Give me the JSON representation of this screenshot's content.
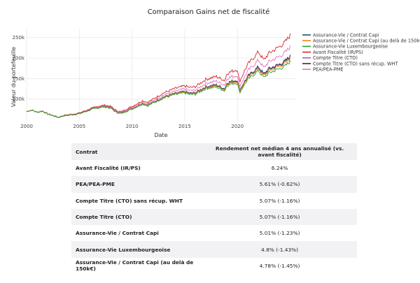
{
  "chart_data": {
    "type": "line",
    "title": "Comparaison Gains net de fiscalité",
    "xlabel": "Date",
    "ylabel": "Valeur du portefeuille",
    "xlim": [
      2000,
      2025.5
    ],
    "ylim": [
      45000,
      270000
    ],
    "xticks": [
      2000,
      2005,
      2010,
      2015,
      2020
    ],
    "xtick_labels": [
      "2000",
      "2005",
      "2010",
      "2015",
      "2020"
    ],
    "yticks": [
      100000,
      150000,
      200000,
      250000
    ],
    "ytick_labels": [
      "100k",
      "150k",
      "200k",
      "250k"
    ],
    "grid": true,
    "legend_position": "right",
    "base_path": {
      "x": [
        2000,
        2000.5,
        2001,
        2001.5,
        2002,
        2002.5,
        2003,
        2003.5,
        2004,
        2005,
        2006,
        2006.5,
        2007,
        2007.5,
        2008,
        2008.5,
        2009,
        2009.5,
        2010,
        2011,
        2011.5,
        2012,
        2013,
        2014,
        2015,
        2015.5,
        2016,
        2017,
        2018,
        2018.8,
        2019,
        2019.5,
        2020,
        2020.2,
        2020.6,
        2021,
        2021.5,
        2022,
        2022.5,
        2023,
        2024,
        2024.5,
        2025
      ],
      "y": [
        70000,
        73000,
        68000,
        71000,
        64000,
        60000,
        56000,
        60000,
        62000,
        66000,
        76000,
        80000,
        84000,
        85000,
        82000,
        72000,
        69000,
        76000,
        82000,
        96000,
        92000,
        100000,
        115000,
        125000,
        132000,
        128000,
        130000,
        148000,
        155000,
        145000,
        162000,
        168000,
        172000,
        142000,
        165000,
        185000,
        200000,
        215000,
        195000,
        212000,
        228000,
        238000,
        255000
      ]
    },
    "series": [
      {
        "name": "Assurance-Vie / Contrat Capi",
        "color": "#1f4e79",
        "final_value": 202000
      },
      {
        "name": "Assurance-Vie / Contrat Capi (au delà de 150k€)",
        "color": "#ff7f0e",
        "final_value": 198000
      },
      {
        "name": "Assurance-Vie Luxembourgeoise",
        "color": "#2ca02c",
        "final_value": 191000
      },
      {
        "name": "Avant Fiscalité (IR/PS)",
        "color": "#d62728",
        "final_value": 255000
      },
      {
        "name": "Compte Titre (CTO)",
        "color": "#9467bd",
        "final_value": 205000
      },
      {
        "name": "Compte Titre (CTO) sans récup. WHT",
        "color": "#3d2b1f",
        "final_value": 203000
      },
      {
        "name": "PEA/PEA-PME",
        "color": "#e377c2",
        "final_value": 227000
      }
    ]
  },
  "table": {
    "headers": [
      "Contrat",
      "Rendement net médian 4 ans annualisé (vs. avant fiscalité)"
    ],
    "rows": [
      [
        "Avant Fiscalité (IR/PS)",
        "6.24%"
      ],
      [
        "PEA/PEA-PME",
        "5.61%  (-0.62%)"
      ],
      [
        "Compte Titre (CTO) sans récup. WHT",
        "5.07%  (-1.16%)"
      ],
      [
        "Compte Titre (CTO)",
        "5.07%  (-1.16%)"
      ],
      [
        "Assurance-Vie / Contrat Capi",
        "5.01%  (-1.23%)"
      ],
      [
        "Assurance-Vie Luxembourgeoise",
        "4.8%  (-1.43%)"
      ],
      [
        "Assurance-Vie / Contrat Capi (au delà de 150k€)",
        "4.78%  (-1.45%)"
      ]
    ]
  }
}
